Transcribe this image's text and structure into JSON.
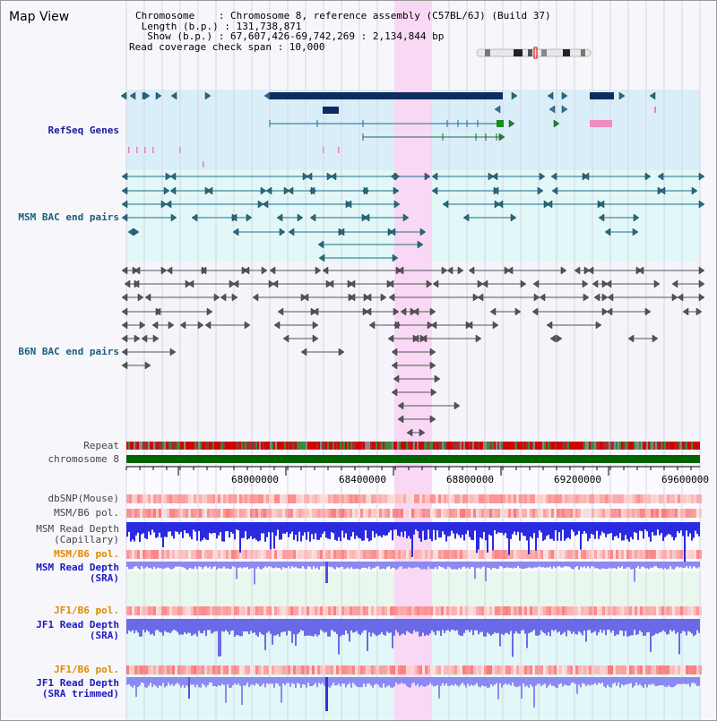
{
  "view_title": "Map View",
  "chromosome_info": {
    "chromosome": "Chromosome    : Chromosome 8, reference assembly (C57BL/6J) (Build 37)",
    "length": " Length (b.p.) : 131,738,871",
    "show": "  Show (b.p.) : 67,607,426-69,742,269 : 2,134,844 bp",
    "coverage": "Read coverage check span : 10,000"
  },
  "track_labels": {
    "refseq": "RefSeq Genes",
    "msm_bac": "MSM BAC end pairs",
    "b6n_bac": "B6N BAC end pairs",
    "repeat": "Repeat",
    "chromosome": "chromosome 8",
    "dbsnp": "dbSNP(Mouse)",
    "msm_b6_pol_1": "MSM/B6 pol.",
    "msm_depth_cap": "MSM Read Depth\n(Capillary)",
    "msm_b6_pol_2": "MSM/B6 pol.",
    "msm_depth_sra": "MSM Read Depth\n(SRA)",
    "jf1_b6_pol_1": "JF1/B6 pol.",
    "jf1_depth_sra": "JF1 Read Depth\n(SRA)",
    "jf1_b6_pol_2": "JF1/B6 pol.",
    "jf1_depth_trim": "JF1 Read Depth\n(SRA trimmed)"
  },
  "axis_ticks": [
    "68000000",
    "68400000",
    "68800000",
    "69200000",
    "69600000"
  ],
  "colors": {
    "highlight": "#f8d8f4",
    "refseq_bg": "#daeefa",
    "msm_bg": "#e2f7f7",
    "depth_bg": "#e8f8ee",
    "chromosome": "#006400",
    "gene_dark": "#0d2d5e",
    "msm_pair": "#1c6e8a",
    "b6n_pair": "#555555"
  }
}
